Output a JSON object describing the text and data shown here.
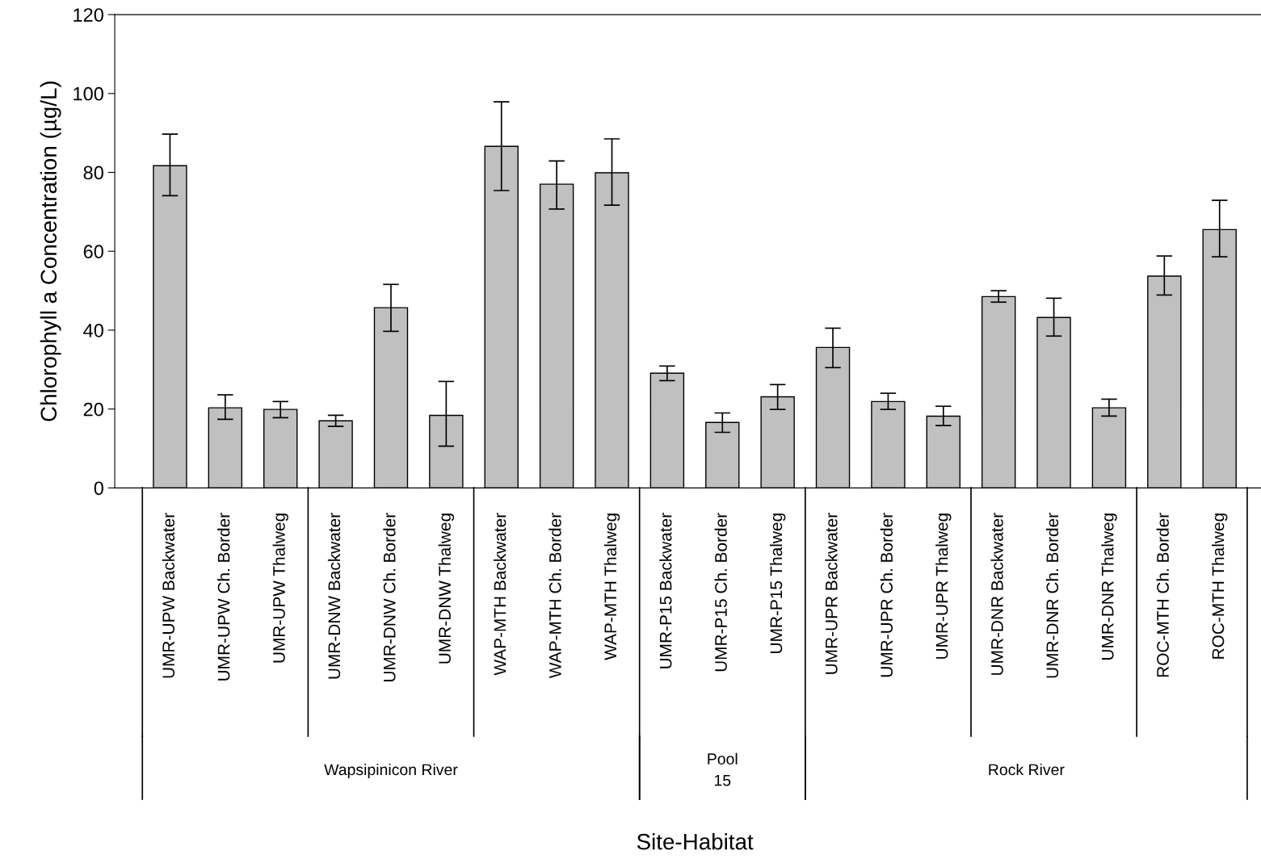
{
  "chart_data": {
    "type": "bar",
    "ylabel": "Chlorophyll a Concentration (µg/L)",
    "categories": [
      "UMR-UPW Backwater",
      "UMR-UPW Ch. Border",
      "UMR-UPW Thalweg",
      "UMR-DNW Backwater",
      "UMR-DNW Ch. Border",
      "UMR-DNW Thalweg",
      "WAP-MTH Backwater",
      "WAP-MTH Ch. Border",
      "WAP-MTH Thalweg",
      "UMR-P15 Backwater",
      "UMR-P15 Ch. Border",
      "UMR-P15 Thalweg",
      "UMR-UPR Backwater",
      "UMR-UPR Ch. Border",
      "UMR-UPR Thalweg",
      "UMR-DNR Backwater",
      "UMR-DNR Ch. Border",
      "UMR-DNR Thalweg",
      "ROC-MTH Ch. Border",
      "ROC-MTH Thalweg"
    ],
    "values": [
      81.7,
      20.3,
      19.9,
      17.0,
      45.7,
      18.4,
      86.6,
      77.0,
      79.9,
      29.1,
      16.6,
      23.1,
      35.6,
      21.9,
      18.2,
      48.5,
      43.2,
      20.3,
      53.7,
      65.5
    ],
    "errors": [
      [
        74.1,
        89.7
      ],
      [
        17.4,
        23.6
      ],
      [
        17.8,
        21.9
      ],
      [
        15.6,
        18.4
      ],
      [
        39.7,
        51.6
      ],
      [
        10.6,
        27.0
      ],
      [
        75.4,
        97.9
      ],
      [
        70.7,
        82.9
      ],
      [
        71.7,
        88.5
      ],
      [
        27.2,
        30.9
      ],
      [
        14.1,
        19.0
      ],
      [
        19.9,
        26.2
      ],
      [
        30.5,
        40.5
      ],
      [
        19.9,
        24.0
      ],
      [
        15.8,
        20.7
      ],
      [
        47.1,
        50.0
      ],
      [
        38.5,
        48.1
      ],
      [
        18.2,
        22.5
      ],
      [
        48.9,
        58.8
      ],
      [
        58.6,
        72.9
      ]
    ],
    "color": "#c0c0c0",
    "ylim": [
      0,
      120
    ],
    "yticks": [
      0,
      20,
      40,
      60,
      80,
      100,
      120
    ],
    "annotations": [
      "Wapsipinicon River",
      "Pool\n15",
      "Rock River",
      "Site-Habitat"
    ],
    "grid": false,
    "legend": false
  }
}
